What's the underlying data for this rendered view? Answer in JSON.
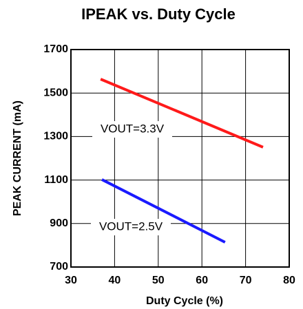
{
  "chart_data": {
    "type": "line",
    "title": "IPEAK vs. Duty Cycle",
    "xlabel": "Duty Cycle (%)",
    "ylabel": "PEAK CURRENT (mA)",
    "xlim": [
      30,
      80
    ],
    "xticks": [
      30,
      40,
      50,
      60,
      70,
      80
    ],
    "ylim": [
      700,
      1700
    ],
    "yticks": [
      700,
      900,
      1100,
      1300,
      1500,
      1700
    ],
    "grid": true,
    "series": [
      {
        "name": "VOUT=3.3V",
        "color": "#ff1a1a",
        "x": [
          36.8,
          74
        ],
        "values": [
          1564,
          1251
        ]
      },
      {
        "name": "VOUT=2.5V",
        "color": "#1a1aff",
        "x": [
          37.1,
          65.3
        ],
        "values": [
          1102,
          814
        ]
      }
    ]
  }
}
